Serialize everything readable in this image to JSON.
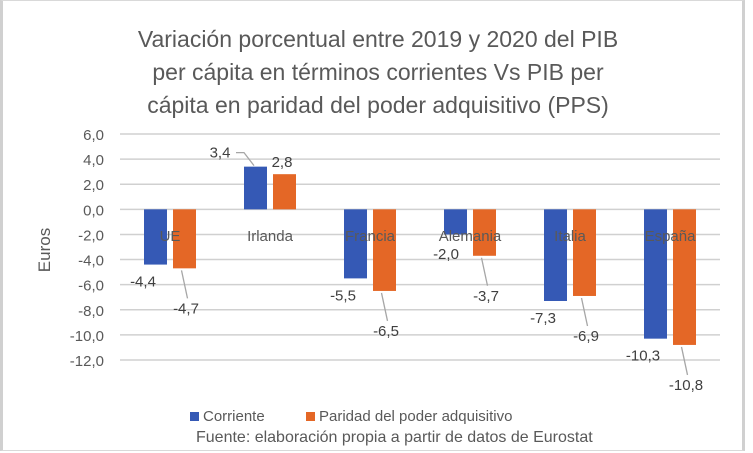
{
  "chart_data": {
    "type": "bar",
    "title": [
      "Variación porcentual entre 2019 y 2020 del PIB",
      "per cápita en términos corrientes Vs PIB per",
      "cápita en paridad del poder adquisitivo (PPS)"
    ],
    "ylabel": "Euros",
    "xlabel": "",
    "ylim": [
      -12,
      6
    ],
    "yticks": [
      "6,0",
      "4,0",
      "2,0",
      "0,0",
      "-2,0",
      "-4,0",
      "-6,0",
      "-8,0",
      "-10,0",
      "-12,0"
    ],
    "grid": true,
    "legend_position": "bottom",
    "categories": [
      "UE",
      "Irlanda",
      "Francia",
      "Alemania",
      "Italia",
      "España"
    ],
    "series": [
      {
        "name": "Corriente",
        "color": "#3559b5",
        "values": [
          -4.4,
          3.4,
          -5.5,
          -2.0,
          -7.3,
          -10.3
        ],
        "labels": [
          "-4,4",
          "3,4",
          "-5,5",
          "-2,0",
          "-7,3",
          "-10,3"
        ]
      },
      {
        "name": "Paridad del poder adquisitivo",
        "color": "#e46726",
        "values": [
          -4.7,
          2.8,
          -6.5,
          -3.7,
          -6.9,
          -10.8
        ],
        "labels": [
          "-4,7",
          "2,8",
          "-6,5",
          "-3,7",
          "-6,9",
          "-10,8"
        ]
      }
    ],
    "source": "Fuente: elaboración propia a partir de datos de Eurostat"
  }
}
